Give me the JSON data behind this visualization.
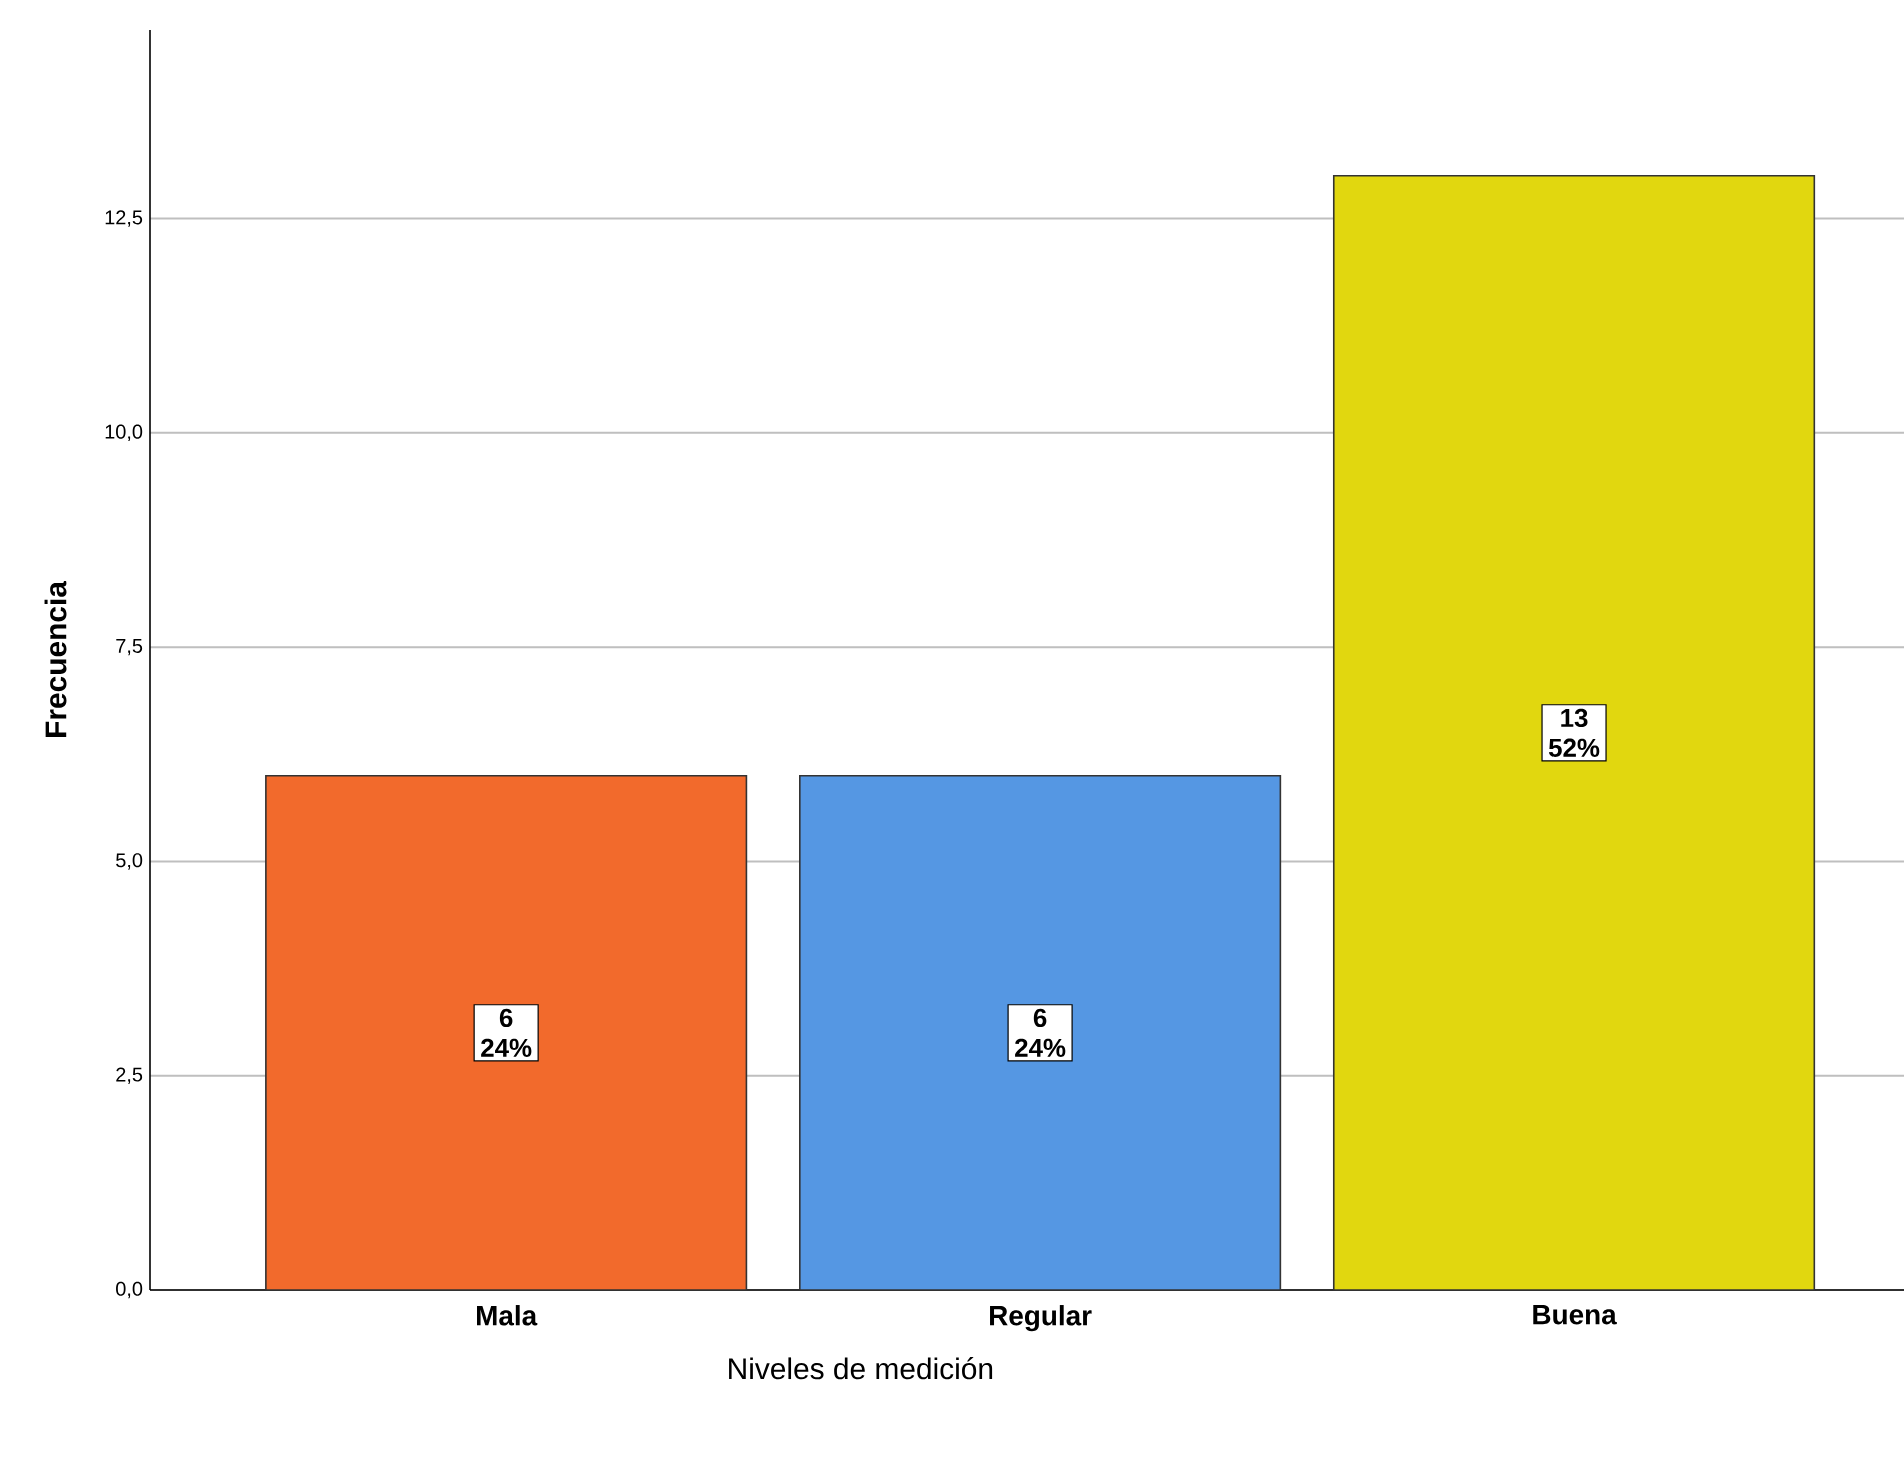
{
  "chart_data": {
    "type": "bar",
    "xlabel": "Niveles de medición",
    "ylabel": "Frecuencia",
    "categories": [
      "Mala",
      "Regular",
      "Buena"
    ],
    "values": [
      6,
      6,
      13
    ],
    "colors": [
      "#f26a2c",
      "#5597e3",
      "#e1d70f"
    ],
    "value_labels": [
      "6 24%",
      "6 24%",
      "13 52%"
    ],
    "ylim": [
      0,
      14.7
    ],
    "yticks": [
      {
        "value": 0,
        "label": "0,0"
      },
      {
        "value": 2.5,
        "label": "2,5"
      },
      {
        "value": 5,
        "label": "5,0"
      },
      {
        "value": 7.5,
        "label": "7,5"
      },
      {
        "value": 10,
        "label": "10,0"
      },
      {
        "value": 12.5,
        "label": "12,5"
      }
    ],
    "grid": "y"
  }
}
